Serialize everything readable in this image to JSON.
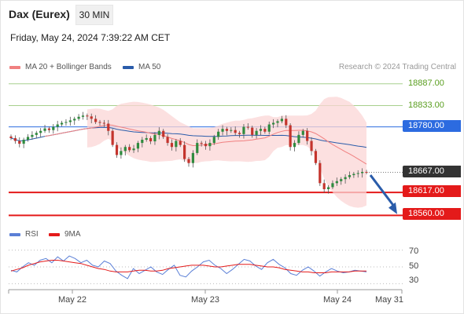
{
  "header": {
    "instrument": "Dax (Eurex)",
    "interval": "30 MIN",
    "datetime": "Friday, May 24, 2024 7:39:22 AM CET"
  },
  "legend": {
    "ma20": {
      "label": "MA 20 + Bollinger Bands",
      "color": "#f08080"
    },
    "ma50": {
      "label": "MA 50",
      "color": "#2a5caa"
    },
    "credit": "Research © 2024 Trading Central"
  },
  "rsi_legend": {
    "rsi": {
      "label": "RSI",
      "color": "#5b7fd6"
    },
    "ma9": {
      "label": "9MA",
      "color": "#e41a1a"
    }
  },
  "levels": [
    {
      "value": "18887.00",
      "kind": "resistance",
      "color": "#a8d08d"
    },
    {
      "value": "18833.00",
      "kind": "resistance",
      "color": "#a8d08d"
    },
    {
      "value": "18780.00",
      "kind": "pivot",
      "color": "#2c6be0"
    },
    {
      "value": "18667.00",
      "kind": "last",
      "color": "#333333"
    },
    {
      "value": "18617.00",
      "kind": "support",
      "color": "#e41a1a"
    },
    {
      "value": "18560.00",
      "kind": "support",
      "color": "#e41a1a"
    }
  ],
  "rsi_ticks": [
    "70",
    "50",
    "30"
  ],
  "x_ticks": [
    "May 22",
    "May 23",
    "May 24",
    "May 31"
  ],
  "chart_data": [
    {
      "type": "line",
      "title": "Dax (Eurex) 30 MIN",
      "ylim": [
        18545,
        18910
      ],
      "x": [
        "May 22",
        "May 23",
        "May 24"
      ],
      "closes": [
        18752,
        18745,
        18738,
        18748,
        18755,
        18760,
        18765,
        18770,
        18776,
        18772,
        18780,
        18786,
        18790,
        18792,
        18796,
        18800,
        18805,
        18808,
        18806,
        18800,
        18792,
        18790,
        18788,
        18770,
        18735,
        18710,
        18720,
        18730,
        18722,
        18726,
        18740,
        18748,
        18752,
        18744,
        18760,
        18770,
        18755,
        18740,
        18730,
        18745,
        18735,
        18700,
        18690,
        18715,
        18740,
        18738,
        18732,
        18740,
        18755,
        18768,
        18775,
        18770,
        18772,
        18765,
        18762,
        18780,
        18778,
        18760,
        18770,
        18775,
        18768,
        18786,
        18790,
        18794,
        18800,
        18784,
        18730,
        18740,
        18760,
        18770,
        18745,
        18720,
        18690,
        18640,
        18625,
        18630,
        18640,
        18645,
        18650,
        18655,
        18660,
        18663,
        18665,
        18668,
        18667
      ],
      "series": [
        {
          "name": "MA 20 + Bollinger Bands"
        },
        {
          "name": "MA 50"
        }
      ]
    },
    {
      "type": "line",
      "ylim": [
        20,
        80
      ],
      "series": [
        {
          "name": "RSI",
          "values": [
            46,
            44,
            50,
            55,
            52,
            58,
            60,
            55,
            62,
            57,
            63,
            60,
            55,
            58,
            52,
            50,
            57,
            54,
            45,
            40,
            36,
            48,
            42,
            46,
            50,
            44,
            41,
            47,
            52,
            40,
            38,
            45,
            50,
            56,
            58,
            52,
            48,
            42,
            47,
            53,
            59,
            57,
            51,
            47,
            55,
            59,
            53,
            49,
            42,
            40,
            46,
            50,
            45,
            39,
            44,
            48,
            45,
            43,
            44,
            46,
            45,
            44
          ]
        },
        {
          "name": "9MA",
          "values": [
            45,
            47,
            49,
            52,
            54,
            56,
            57,
            58,
            58,
            57,
            56,
            55,
            54,
            52,
            50,
            48,
            47,
            45,
            44,
            44,
            44,
            45,
            46,
            46,
            45,
            45,
            46,
            48,
            49,
            50,
            51,
            52,
            52,
            52,
            51,
            50,
            50,
            51,
            52,
            53,
            53,
            53,
            52,
            51,
            50,
            50,
            49,
            47,
            46,
            45,
            44,
            44,
            43,
            43,
            43,
            44,
            44,
            44,
            44,
            45,
            45,
            45
          ]
        }
      ]
    }
  ]
}
